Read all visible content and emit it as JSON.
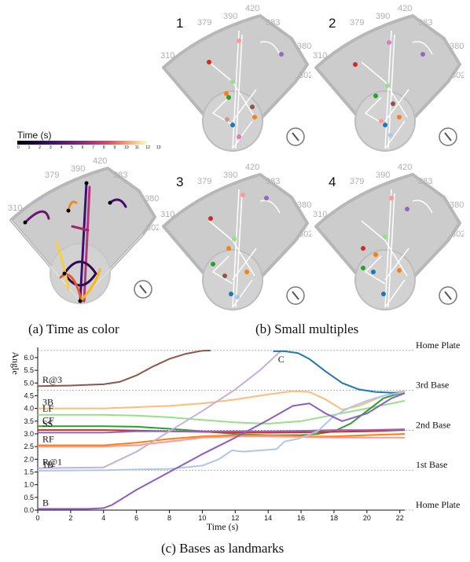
{
  "colors": {
    "field": "#cccccc",
    "field_edge": "#b7b7b7",
    "base_circle": "#bdbdbd",
    "distance_label": "#b0b0b0",
    "reference_line": "#e8e8e8",
    "path_light": "#ffffff"
  },
  "distances": [
    "310",
    "379",
    "390",
    "420",
    "383",
    "380",
    "302"
  ],
  "legend": {
    "title": "Time (s)",
    "ticks": [
      "0",
      "1",
      "2",
      "3",
      "4",
      "5",
      "6",
      "7",
      "8",
      "9",
      "10",
      "11",
      "12",
      "13"
    ]
  },
  "panels": {
    "small_multiples": [
      "1",
      "2",
      "3",
      "4"
    ]
  },
  "captions": {
    "a": "(a) Time as color",
    "b": "(b) Small multiples",
    "c": "(c) Bases as landmarks"
  },
  "chart_data": {
    "type": "line",
    "xlabel": "Time (s)",
    "ylabel": "Angle",
    "xlim": [
      0,
      22.3
    ],
    "ylim": [
      0,
      6.4
    ],
    "x_ticks": [
      0,
      2,
      4,
      6,
      8,
      10,
      12,
      14,
      16,
      18,
      20,
      22
    ],
    "y_ticks": [
      "0.0",
      "0.5",
      "1.0",
      "1.5",
      "2.0",
      "2.5",
      "3.0",
      "3.5",
      "4.0",
      "4.5",
      "5.0",
      "5.5",
      "6.0"
    ],
    "landmarks": [
      {
        "label": "Home Plate",
        "y": 6.28
      },
      {
        "label": "3rd Base",
        "y": 4.71
      },
      {
        "label": "2nd Base",
        "y": 3.14
      },
      {
        "label": "1st Base",
        "y": 1.57
      },
      {
        "label": "Home Plate",
        "y": 0.0
      }
    ],
    "series": [
      {
        "name": "R@3",
        "color": "#8c564b",
        "x": [
          0,
          2,
          4,
          5,
          6,
          7,
          8,
          9,
          10,
          10.5
        ],
        "y": [
          4.88,
          4.9,
          4.95,
          5.05,
          5.3,
          5.65,
          5.95,
          6.15,
          6.27,
          6.28
        ]
      },
      {
        "name": "3B",
        "color": "#ffbb78",
        "x": [
          0,
          4,
          6,
          8,
          10,
          12,
          14,
          15.5,
          16.5,
          17.5,
          18.5,
          19.5,
          21,
          22.3
        ],
        "y": [
          4.0,
          4.0,
          4.05,
          4.1,
          4.2,
          4.35,
          4.55,
          4.68,
          4.65,
          4.35,
          3.95,
          4.1,
          4.5,
          4.7
        ]
      },
      {
        "name": "LF",
        "color": "#98df8a",
        "x": [
          0,
          4,
          6,
          8,
          10,
          12,
          14,
          16,
          18,
          20,
          22.3
        ],
        "y": [
          3.75,
          3.75,
          3.72,
          3.65,
          3.55,
          3.45,
          3.4,
          3.5,
          3.75,
          4.0,
          4.3
        ]
      },
      {
        "name": "CF",
        "color": "#2ca02c",
        "x": [
          0,
          4,
          6,
          8,
          10,
          12,
          14,
          16,
          17,
          18,
          19,
          20,
          21,
          22.3
        ],
        "y": [
          3.3,
          3.3,
          3.28,
          3.2,
          3.1,
          3.0,
          2.95,
          2.95,
          3.0,
          3.1,
          3.4,
          3.9,
          4.4,
          4.65
        ]
      },
      {
        "name": "SS",
        "color": "#d62728",
        "x": [
          0,
          4,
          6,
          8,
          10,
          12,
          14,
          16,
          18,
          20,
          22.3
        ],
        "y": [
          3.15,
          3.15,
          3.13,
          3.1,
          3.08,
          3.06,
          3.05,
          3.06,
          3.08,
          3.1,
          3.15
        ]
      },
      {
        "name": "RF",
        "color": "#ff7f0e",
        "x": [
          0,
          4,
          6,
          8,
          10,
          12,
          14,
          16,
          18,
          20,
          22.3
        ],
        "y": [
          2.55,
          2.55,
          2.65,
          2.8,
          2.9,
          2.95,
          2.95,
          2.9,
          2.9,
          2.95,
          3.0
        ]
      },
      {
        "name": "",
        "color": "#ff9896",
        "x": [
          0,
          4,
          6,
          8,
          10,
          12,
          14,
          16,
          18,
          20,
          22.3
        ],
        "y": [
          2.5,
          2.5,
          2.55,
          2.7,
          2.85,
          2.9,
          2.9,
          2.88,
          2.85,
          2.85,
          2.85
        ]
      },
      {
        "name": "",
        "color": "#9467bd",
        "x": [
          0,
          4,
          6,
          8,
          10,
          12,
          14,
          16,
          18,
          20,
          22.3
        ],
        "y": [
          3.05,
          3.05,
          3.1,
          3.1,
          3.1,
          3.1,
          3.1,
          3.12,
          3.15,
          3.15,
          3.18
        ]
      },
      {
        "name": "R@1",
        "color": "#c5b0d5",
        "x": [
          0,
          4,
          6,
          8,
          10,
          12,
          13.5,
          14.5,
          14.8
        ],
        "y": [
          1.65,
          1.68,
          2.3,
          3.1,
          3.9,
          4.75,
          5.5,
          6.1,
          6.28
        ]
      },
      {
        "name": "C",
        "color": "#1f77b4",
        "x": [
          14.3,
          15,
          15.8,
          16.5,
          17.5,
          18.5,
          19.5,
          20.5,
          21.5,
          22.3
        ],
        "y": [
          6.25,
          6.25,
          6.18,
          5.95,
          5.45,
          5.0,
          4.75,
          4.65,
          4.62,
          4.62
        ]
      },
      {
        "name": "1B",
        "color": "#aec7e8",
        "x": [
          0,
          4,
          6,
          8,
          10,
          11,
          11.8,
          12.5,
          13.5,
          14.5,
          15,
          15.8,
          17,
          18,
          19,
          20,
          21,
          22.3
        ],
        "y": [
          1.55,
          1.57,
          1.6,
          1.62,
          1.75,
          2.0,
          2.35,
          2.3,
          2.35,
          2.4,
          2.7,
          2.8,
          3.1,
          3.7,
          4.05,
          4.3,
          4.5,
          4.65
        ]
      },
      {
        "name": "B",
        "color": "#8e5cc4",
        "x": [
          0,
          3,
          4,
          4.5,
          5,
          6,
          8,
          10,
          12,
          14,
          15.5,
          16.5,
          17.5,
          18.5,
          20,
          21.5,
          22.3
        ],
        "y": [
          0.05,
          0.05,
          0.08,
          0.2,
          0.4,
          0.8,
          1.5,
          2.2,
          2.85,
          3.55,
          4.1,
          4.2,
          3.8,
          3.5,
          3.8,
          4.4,
          4.6
        ]
      }
    ]
  }
}
